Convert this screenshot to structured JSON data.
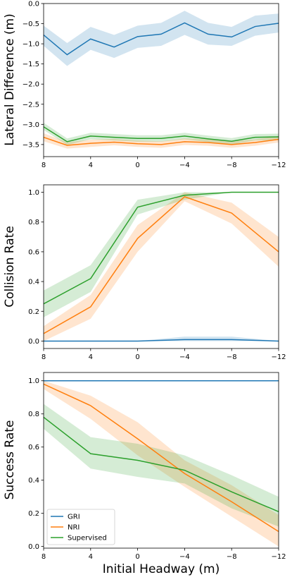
{
  "chart_data": [
    {
      "type": "line",
      "ylabel": "Lateral Difference (m)",
      "xlabel": "",
      "x": [
        8,
        6,
        4,
        2,
        0,
        -2,
        -4,
        -6,
        -8,
        -10,
        -12
      ],
      "x_ticks": [
        8,
        4,
        0,
        -4,
        -8,
        -12
      ],
      "x_tick_labels": [
        "8",
        "4",
        "0",
        "−4",
        "−8",
        "−12"
      ],
      "xlim": [
        8,
        -12
      ],
      "ylim": [
        -3.8,
        0.0
      ],
      "y_ticks": [
        0.0,
        -0.5,
        -1.0,
        -1.5,
        -2.0,
        -2.5,
        -3.0,
        -3.5
      ],
      "y_tick_labels": [
        "0.0",
        "−0.5",
        "−1.0",
        "−1.5",
        "−2.0",
        "−2.5",
        "−3.0",
        "−3.5"
      ],
      "grid": false,
      "series": [
        {
          "name": "GRI",
          "color": "#1f77b4",
          "values": [
            -0.78,
            -1.27,
            -0.88,
            -1.08,
            -0.82,
            -0.76,
            -0.48,
            -0.76,
            -0.83,
            -0.57,
            -0.49
          ],
          "lower": [
            -1.05,
            -1.55,
            -1.15,
            -1.35,
            -1.1,
            -1.05,
            -0.78,
            -1.02,
            -1.05,
            -0.8,
            -0.72
          ],
          "upper": [
            -0.55,
            -0.98,
            -0.58,
            -0.78,
            -0.55,
            -0.48,
            -0.18,
            -0.48,
            -0.58,
            -0.3,
            -0.25
          ]
        },
        {
          "name": "NRI",
          "color": "#ff7f0e",
          "values": [
            -3.32,
            -3.52,
            -3.47,
            -3.44,
            -3.48,
            -3.5,
            -3.43,
            -3.45,
            -3.5,
            -3.45,
            -3.37
          ],
          "lower": [
            -3.42,
            -3.6,
            -3.56,
            -3.52,
            -3.56,
            -3.58,
            -3.51,
            -3.53,
            -3.58,
            -3.53,
            -3.45
          ],
          "upper": [
            -3.22,
            -3.44,
            -3.38,
            -3.36,
            -3.4,
            -3.42,
            -3.35,
            -3.37,
            -3.42,
            -3.37,
            -3.29
          ]
        },
        {
          "name": "Supervised",
          "color": "#2ca02c",
          "values": [
            -3.06,
            -3.43,
            -3.29,
            -3.32,
            -3.35,
            -3.35,
            -3.29,
            -3.36,
            -3.42,
            -3.32,
            -3.31
          ],
          "lower": [
            -3.14,
            -3.51,
            -3.37,
            -3.4,
            -3.43,
            -3.43,
            -3.37,
            -3.44,
            -3.5,
            -3.4,
            -3.39
          ],
          "upper": [
            -2.96,
            -3.35,
            -3.21,
            -3.24,
            -3.27,
            -3.27,
            -3.21,
            -3.28,
            -3.34,
            -3.24,
            -3.23
          ]
        }
      ]
    },
    {
      "type": "line",
      "ylabel": "Collision Rate",
      "xlabel": "",
      "x": [
        8,
        4,
        0,
        -4,
        -8,
        -12
      ],
      "x_ticks": [
        8,
        4,
        0,
        -4,
        -8,
        -12
      ],
      "x_tick_labels": [
        "8",
        "4",
        "0",
        "−4",
        "−8",
        "−12"
      ],
      "xlim": [
        8,
        -12
      ],
      "ylim": [
        -0.05,
        1.05
      ],
      "y_ticks": [
        0.0,
        0.2,
        0.4,
        0.6,
        0.8,
        1.0
      ],
      "y_tick_labels": [
        "0.0",
        "0.2",
        "0.4",
        "0.6",
        "0.8",
        "1.0"
      ],
      "grid": false,
      "series": [
        {
          "name": "GRI",
          "color": "#1f77b4",
          "values": [
            0.0,
            0.0,
            0.0,
            0.01,
            0.01,
            0.0
          ],
          "lower": [
            0.0,
            0.0,
            0.0,
            0.0,
            0.0,
            0.0
          ],
          "upper": [
            0.0,
            0.0,
            0.0,
            0.03,
            0.03,
            0.0
          ]
        },
        {
          "name": "NRI",
          "color": "#ff7f0e",
          "values": [
            0.05,
            0.23,
            0.69,
            0.97,
            0.86,
            0.6
          ],
          "lower": [
            0.0,
            0.15,
            0.6,
            0.94,
            0.79,
            0.5
          ],
          "upper": [
            0.1,
            0.31,
            0.78,
            1.0,
            0.93,
            0.7
          ]
        },
        {
          "name": "Supervised",
          "color": "#2ca02c",
          "values": [
            0.25,
            0.42,
            0.9,
            0.98,
            1.0,
            1.0
          ],
          "lower": [
            0.16,
            0.33,
            0.85,
            0.95,
            1.0,
            1.0
          ],
          "upper": [
            0.34,
            0.51,
            0.95,
            1.0,
            1.0,
            1.0
          ]
        }
      ]
    },
    {
      "type": "line",
      "ylabel": "Success Rate",
      "xlabel": "Initial Headway (m)",
      "x": [
        8,
        4,
        0,
        -4,
        -8,
        -12
      ],
      "x_ticks": [
        8,
        4,
        0,
        -4,
        -8,
        -12
      ],
      "x_tick_labels": [
        "8",
        "4",
        "0",
        "−4",
        "−8",
        "−12"
      ],
      "xlim": [
        8,
        -12
      ],
      "ylim": [
        -0.01,
        1.05
      ],
      "y_ticks": [
        0.0,
        0.2,
        0.4,
        0.6,
        0.8,
        1.0
      ],
      "y_tick_labels": [
        "0.0",
        "0.2",
        "0.4",
        "0.6",
        "0.8",
        "1.0"
      ],
      "grid": false,
      "legend": "lower-left",
      "series": [
        {
          "name": "GRI",
          "color": "#1f77b4",
          "values": [
            1.0,
            1.0,
            1.0,
            1.0,
            1.0,
            1.0
          ],
          "lower": [
            1.0,
            1.0,
            1.0,
            1.0,
            1.0,
            1.0
          ],
          "upper": [
            1.0,
            1.0,
            1.0,
            1.0,
            1.0,
            1.0
          ]
        },
        {
          "name": "NRI",
          "color": "#ff7f0e",
          "values": [
            0.98,
            0.85,
            0.65,
            0.44,
            0.27,
            0.09
          ],
          "lower": [
            0.95,
            0.77,
            0.55,
            0.36,
            0.18,
            0.0
          ],
          "upper": [
            1.0,
            0.91,
            0.75,
            0.52,
            0.37,
            0.19
          ]
        },
        {
          "name": "Supervised",
          "color": "#2ca02c",
          "values": [
            0.78,
            0.56,
            0.52,
            0.46,
            0.33,
            0.21
          ],
          "lower": [
            0.71,
            0.47,
            0.42,
            0.38,
            0.23,
            0.12
          ],
          "upper": [
            0.86,
            0.66,
            0.62,
            0.55,
            0.43,
            0.3
          ]
        }
      ]
    }
  ]
}
